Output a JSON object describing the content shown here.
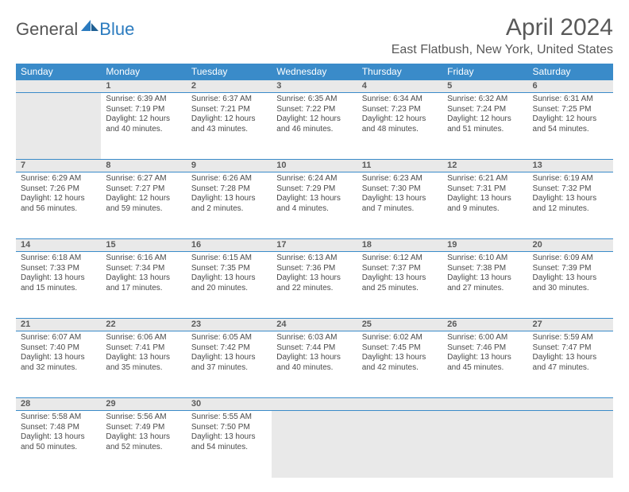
{
  "logo": {
    "text1": "General",
    "text2": "Blue"
  },
  "title": "April 2024",
  "location": "East Flatbush, New York, United States",
  "colors": {
    "header_bg": "#3a8bc9",
    "header_text": "#ffffff",
    "daynum_bg": "#e9e9e9",
    "cell_border": "#3a8bc9",
    "body_text": "#4a4a4a",
    "title_text": "#595959",
    "logo_blue": "#2b7bbf",
    "logo_gray": "#555555"
  },
  "weekdays": [
    "Sunday",
    "Monday",
    "Tuesday",
    "Wednesday",
    "Thursday",
    "Friday",
    "Saturday"
  ],
  "weeks": [
    {
      "nums": [
        "",
        "1",
        "2",
        "3",
        "4",
        "5",
        "6"
      ],
      "cells": [
        null,
        {
          "sunrise": "Sunrise: 6:39 AM",
          "sunset": "Sunset: 7:19 PM",
          "daylight": "Daylight: 12 hours and 40 minutes."
        },
        {
          "sunrise": "Sunrise: 6:37 AM",
          "sunset": "Sunset: 7:21 PM",
          "daylight": "Daylight: 12 hours and 43 minutes."
        },
        {
          "sunrise": "Sunrise: 6:35 AM",
          "sunset": "Sunset: 7:22 PM",
          "daylight": "Daylight: 12 hours and 46 minutes."
        },
        {
          "sunrise": "Sunrise: 6:34 AM",
          "sunset": "Sunset: 7:23 PM",
          "daylight": "Daylight: 12 hours and 48 minutes."
        },
        {
          "sunrise": "Sunrise: 6:32 AM",
          "sunset": "Sunset: 7:24 PM",
          "daylight": "Daylight: 12 hours and 51 minutes."
        },
        {
          "sunrise": "Sunrise: 6:31 AM",
          "sunset": "Sunset: 7:25 PM",
          "daylight": "Daylight: 12 hours and 54 minutes."
        }
      ]
    },
    {
      "nums": [
        "7",
        "8",
        "9",
        "10",
        "11",
        "12",
        "13"
      ],
      "cells": [
        {
          "sunrise": "Sunrise: 6:29 AM",
          "sunset": "Sunset: 7:26 PM",
          "daylight": "Daylight: 12 hours and 56 minutes."
        },
        {
          "sunrise": "Sunrise: 6:27 AM",
          "sunset": "Sunset: 7:27 PM",
          "daylight": "Daylight: 12 hours and 59 minutes."
        },
        {
          "sunrise": "Sunrise: 6:26 AM",
          "sunset": "Sunset: 7:28 PM",
          "daylight": "Daylight: 13 hours and 2 minutes."
        },
        {
          "sunrise": "Sunrise: 6:24 AM",
          "sunset": "Sunset: 7:29 PM",
          "daylight": "Daylight: 13 hours and 4 minutes."
        },
        {
          "sunrise": "Sunrise: 6:23 AM",
          "sunset": "Sunset: 7:30 PM",
          "daylight": "Daylight: 13 hours and 7 minutes."
        },
        {
          "sunrise": "Sunrise: 6:21 AM",
          "sunset": "Sunset: 7:31 PM",
          "daylight": "Daylight: 13 hours and 9 minutes."
        },
        {
          "sunrise": "Sunrise: 6:19 AM",
          "sunset": "Sunset: 7:32 PM",
          "daylight": "Daylight: 13 hours and 12 minutes."
        }
      ]
    },
    {
      "nums": [
        "14",
        "15",
        "16",
        "17",
        "18",
        "19",
        "20"
      ],
      "cells": [
        {
          "sunrise": "Sunrise: 6:18 AM",
          "sunset": "Sunset: 7:33 PM",
          "daylight": "Daylight: 13 hours and 15 minutes."
        },
        {
          "sunrise": "Sunrise: 6:16 AM",
          "sunset": "Sunset: 7:34 PM",
          "daylight": "Daylight: 13 hours and 17 minutes."
        },
        {
          "sunrise": "Sunrise: 6:15 AM",
          "sunset": "Sunset: 7:35 PM",
          "daylight": "Daylight: 13 hours and 20 minutes."
        },
        {
          "sunrise": "Sunrise: 6:13 AM",
          "sunset": "Sunset: 7:36 PM",
          "daylight": "Daylight: 13 hours and 22 minutes."
        },
        {
          "sunrise": "Sunrise: 6:12 AM",
          "sunset": "Sunset: 7:37 PM",
          "daylight": "Daylight: 13 hours and 25 minutes."
        },
        {
          "sunrise": "Sunrise: 6:10 AM",
          "sunset": "Sunset: 7:38 PM",
          "daylight": "Daylight: 13 hours and 27 minutes."
        },
        {
          "sunrise": "Sunrise: 6:09 AM",
          "sunset": "Sunset: 7:39 PM",
          "daylight": "Daylight: 13 hours and 30 minutes."
        }
      ]
    },
    {
      "nums": [
        "21",
        "22",
        "23",
        "24",
        "25",
        "26",
        "27"
      ],
      "cells": [
        {
          "sunrise": "Sunrise: 6:07 AM",
          "sunset": "Sunset: 7:40 PM",
          "daylight": "Daylight: 13 hours and 32 minutes."
        },
        {
          "sunrise": "Sunrise: 6:06 AM",
          "sunset": "Sunset: 7:41 PM",
          "daylight": "Daylight: 13 hours and 35 minutes."
        },
        {
          "sunrise": "Sunrise: 6:05 AM",
          "sunset": "Sunset: 7:42 PM",
          "daylight": "Daylight: 13 hours and 37 minutes."
        },
        {
          "sunrise": "Sunrise: 6:03 AM",
          "sunset": "Sunset: 7:44 PM",
          "daylight": "Daylight: 13 hours and 40 minutes."
        },
        {
          "sunrise": "Sunrise: 6:02 AM",
          "sunset": "Sunset: 7:45 PM",
          "daylight": "Daylight: 13 hours and 42 minutes."
        },
        {
          "sunrise": "Sunrise: 6:00 AM",
          "sunset": "Sunset: 7:46 PM",
          "daylight": "Daylight: 13 hours and 45 minutes."
        },
        {
          "sunrise": "Sunrise: 5:59 AM",
          "sunset": "Sunset: 7:47 PM",
          "daylight": "Daylight: 13 hours and 47 minutes."
        }
      ]
    },
    {
      "nums": [
        "28",
        "29",
        "30",
        "",
        "",
        "",
        ""
      ],
      "cells": [
        {
          "sunrise": "Sunrise: 5:58 AM",
          "sunset": "Sunset: 7:48 PM",
          "daylight": "Daylight: 13 hours and 50 minutes."
        },
        {
          "sunrise": "Sunrise: 5:56 AM",
          "sunset": "Sunset: 7:49 PM",
          "daylight": "Daylight: 13 hours and 52 minutes."
        },
        {
          "sunrise": "Sunrise: 5:55 AM",
          "sunset": "Sunset: 7:50 PM",
          "daylight": "Daylight: 13 hours and 54 minutes."
        },
        null,
        null,
        null,
        null
      ]
    }
  ]
}
